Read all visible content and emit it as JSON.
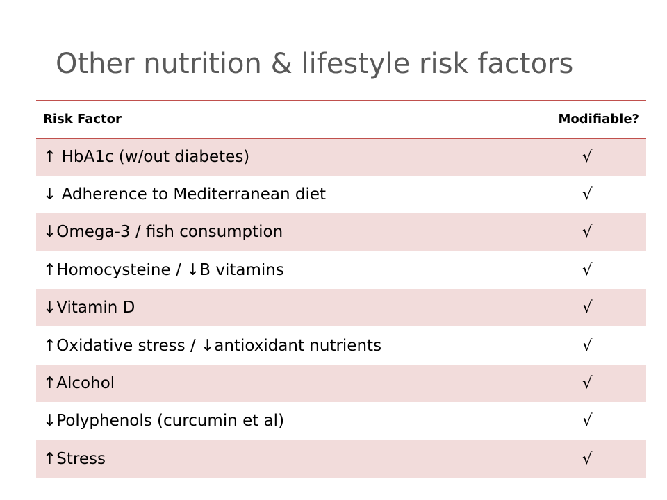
{
  "slide": {
    "title": "Other nutrition & lifestyle risk factors"
  },
  "table": {
    "headers": {
      "risk_factor": "Risk Factor",
      "modifiable": "Modifiable?"
    },
    "rows": [
      {
        "factor": "↑ HbA1c (w/out diabetes)",
        "modifiable": "√"
      },
      {
        "factor": "↓ Adherence to Mediterranean diet",
        "modifiable": "√"
      },
      {
        "factor": "↓Omega-3 / fish consumption",
        "modifiable": "√"
      },
      {
        "factor": "↑Homocysteine / ↓B vitamins",
        "modifiable": "√"
      },
      {
        "factor": "↓Vitamin D",
        "modifiable": "√"
      },
      {
        "factor": "↑Oxidative stress / ↓antioxidant nutrients",
        "modifiable": "√"
      },
      {
        "factor": "↑Alcohol",
        "modifiable": "√"
      },
      {
        "factor": "↓Polyphenols (curcumin et al)",
        "modifiable": "√"
      },
      {
        "factor": "↑Stress",
        "modifiable": "√"
      }
    ]
  },
  "colors": {
    "accent": "#c0504d",
    "band": "#f2dcdb",
    "title": "#595959"
  }
}
